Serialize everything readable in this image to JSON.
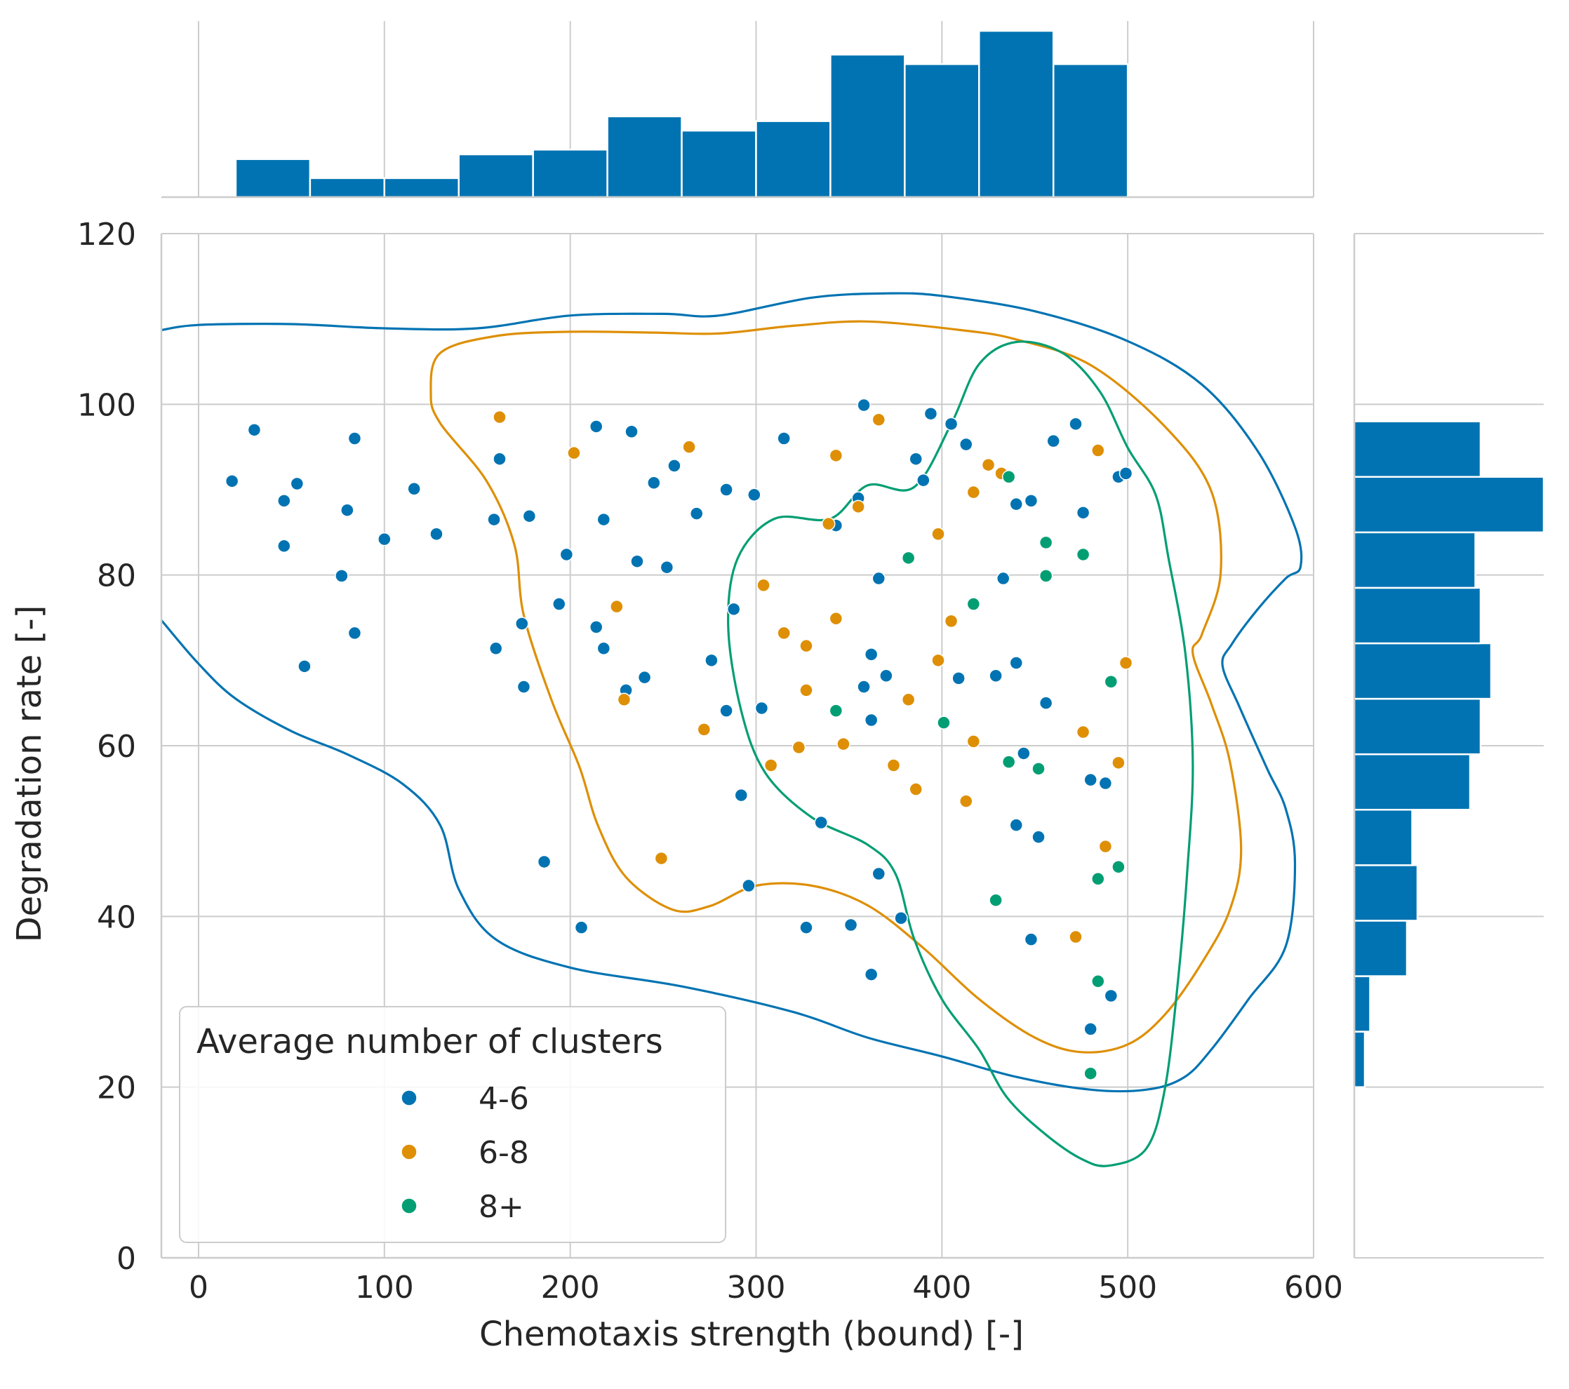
{
  "chart_data": {
    "type": "scatter",
    "title": "",
    "xlabel": "Chemotaxis strength (bound) [-]",
    "ylabel": "Degradation rate [-]",
    "xlim": [
      -20,
      600
    ],
    "ylim": [
      0,
      120
    ],
    "xticks": [
      0,
      100,
      200,
      300,
      400,
      500,
      600
    ],
    "yticks": [
      0,
      20,
      40,
      60,
      80,
      100,
      120
    ],
    "grid": true,
    "legend": {
      "title": "Average number of clusters",
      "placement": "lower-left"
    },
    "series": [
      {
        "name": "4-6",
        "color": "#0173b2",
        "points": [
          [
            18,
            91
          ],
          [
            30,
            97
          ],
          [
            46,
            88.7
          ],
          [
            46,
            83.4
          ],
          [
            53,
            90.7
          ],
          [
            57,
            69.3
          ],
          [
            77,
            79.9
          ],
          [
            80,
            87.6
          ],
          [
            84,
            96
          ],
          [
            84,
            73.2
          ],
          [
            100,
            84.2
          ],
          [
            116,
            90.1
          ],
          [
            128,
            84.8
          ],
          [
            159,
            86.5
          ],
          [
            160,
            71.4
          ],
          [
            162,
            93.6
          ],
          [
            174,
            74.3
          ],
          [
            175,
            66.9
          ],
          [
            178,
            86.9
          ],
          [
            186,
            46.4
          ],
          [
            194,
            76.6
          ],
          [
            198,
            82.4
          ],
          [
            206,
            38.7
          ],
          [
            214,
            97.4
          ],
          [
            214,
            73.9
          ],
          [
            218,
            86.5
          ],
          [
            218,
            71.4
          ],
          [
            230,
            66.5
          ],
          [
            233,
            96.8
          ],
          [
            236,
            81.6
          ],
          [
            240,
            68
          ],
          [
            245,
            90.8
          ],
          [
            252,
            80.9
          ],
          [
            256,
            92.8
          ],
          [
            268,
            87.2
          ],
          [
            276,
            70
          ],
          [
            284,
            90
          ],
          [
            284,
            64.1
          ],
          [
            288,
            76
          ],
          [
            292,
            54.2
          ],
          [
            296,
            43.6
          ],
          [
            299,
            89.4
          ],
          [
            303,
            64.4
          ],
          [
            315,
            96
          ],
          [
            327,
            38.7
          ],
          [
            335,
            51
          ],
          [
            343,
            85.8
          ],
          [
            351,
            39
          ],
          [
            355,
            89
          ],
          [
            358,
            99.9
          ],
          [
            358,
            66.9
          ],
          [
            362,
            70.7
          ],
          [
            362,
            63
          ],
          [
            362,
            33.2
          ],
          [
            366,
            79.6
          ],
          [
            366,
            45
          ],
          [
            370,
            68.2
          ],
          [
            378,
            39.8
          ],
          [
            386,
            93.6
          ],
          [
            390,
            91.1
          ],
          [
            394,
            98.9
          ],
          [
            405,
            97.7
          ],
          [
            409,
            67.9
          ],
          [
            413,
            95.3
          ],
          [
            429,
            68.2
          ],
          [
            433,
            79.6
          ],
          [
            440,
            88.3
          ],
          [
            440,
            50.7
          ],
          [
            440,
            69.7
          ],
          [
            444,
            59.1
          ],
          [
            448,
            88.7
          ],
          [
            448,
            37.3
          ],
          [
            452,
            49.3
          ],
          [
            456,
            65
          ],
          [
            460,
            95.7
          ],
          [
            472,
            97.7
          ],
          [
            476,
            87.3
          ],
          [
            480,
            56
          ],
          [
            480,
            26.8
          ],
          [
            488,
            55.6
          ],
          [
            491,
            30.7
          ],
          [
            495,
            91.5
          ],
          [
            499,
            91.9
          ]
        ]
      },
      {
        "name": "6-8",
        "color": "#de8f05",
        "points": [
          [
            162,
            98.5
          ],
          [
            202,
            94.3
          ],
          [
            225,
            76.3
          ],
          [
            229,
            65.4
          ],
          [
            249,
            46.8
          ],
          [
            264,
            95
          ],
          [
            272,
            61.9
          ],
          [
            304,
            78.8
          ],
          [
            308,
            57.7
          ],
          [
            315,
            73.2
          ],
          [
            323,
            59.8
          ],
          [
            327,
            71.7
          ],
          [
            327,
            66.5
          ],
          [
            339,
            86
          ],
          [
            343,
            94
          ],
          [
            343,
            74.9
          ],
          [
            347,
            60.2
          ],
          [
            355,
            88
          ],
          [
            366,
            98.2
          ],
          [
            374,
            57.7
          ],
          [
            382,
            65.4
          ],
          [
            386,
            54.9
          ],
          [
            398,
            84.8
          ],
          [
            398,
            70
          ],
          [
            405,
            74.6
          ],
          [
            413,
            53.5
          ],
          [
            417,
            89.7
          ],
          [
            417,
            60.5
          ],
          [
            425,
            92.9
          ],
          [
            432,
            91.9
          ],
          [
            472,
            37.6
          ],
          [
            476,
            61.6
          ],
          [
            484,
            94.6
          ],
          [
            488,
            48.2
          ],
          [
            495,
            58
          ],
          [
            499,
            69.7
          ]
        ]
      },
      {
        "name": "8+",
        "color": "#029e73",
        "points": [
          [
            343,
            64.1
          ],
          [
            382,
            82
          ],
          [
            401,
            62.7
          ],
          [
            417,
            76.6
          ],
          [
            429,
            41.9
          ],
          [
            436,
            91.5
          ],
          [
            436,
            58.1
          ],
          [
            452,
            57.3
          ],
          [
            456,
            83.8
          ],
          [
            456,
            79.9
          ],
          [
            476,
            82.4
          ],
          [
            480,
            21.6
          ],
          [
            484,
            44.4
          ],
          [
            484,
            32.4
          ],
          [
            491,
            67.5
          ],
          [
            495,
            45.8
          ]
        ]
      }
    ],
    "top_histogram": {
      "bin_edges": [
        20,
        60,
        100,
        140,
        180,
        220,
        260,
        300,
        340,
        380,
        420,
        460,
        500
      ],
      "counts": [
        8,
        4,
        4,
        9,
        10,
        17,
        14,
        16,
        30,
        28,
        35,
        28
      ]
    },
    "right_histogram": {
      "bin_edges": [
        20,
        26.5,
        33,
        39.5,
        46,
        52.5,
        59,
        65.5,
        72,
        78.5,
        85,
        91.5,
        98
      ],
      "counts": [
        2,
        3,
        10,
        12,
        11,
        22,
        24,
        26,
        24,
        23,
        36,
        24
      ]
    },
    "contours": [
      {
        "series": "4-6",
        "closed": false,
        "points": [
          [
            -20,
            108.7
          ],
          [
            0,
            109.3
          ],
          [
            50,
            109.4
          ],
          [
            100,
            108.9
          ],
          [
            150,
            108.9
          ],
          [
            200,
            110.4
          ],
          [
            250,
            110.6
          ],
          [
            280,
            110.4
          ],
          [
            330,
            112.5
          ],
          [
            370,
            113
          ],
          [
            400,
            112.7
          ],
          [
            450,
            110.9
          ],
          [
            500,
            107.4
          ],
          [
            540,
            102.3
          ],
          [
            570,
            94.5
          ],
          [
            590,
            85.6
          ],
          [
            593,
            81
          ],
          [
            585,
            79.6
          ],
          [
            570,
            76
          ],
          [
            556,
            71.9
          ],
          [
            551,
            69.4
          ],
          [
            560,
            64.6
          ],
          [
            575,
            57.3
          ],
          [
            585,
            52.6
          ],
          [
            590,
            46.2
          ],
          [
            585,
            36.5
          ],
          [
            565,
            30.3
          ],
          [
            545,
            24.4
          ],
          [
            530,
            21.1
          ],
          [
            510,
            19.7
          ],
          [
            480,
            19.7
          ],
          [
            440,
            21.2
          ],
          [
            400,
            23.6
          ],
          [
            360,
            25.8
          ],
          [
            320,
            28.8
          ],
          [
            260,
            31.8
          ],
          [
            200,
            34
          ],
          [
            160,
            37.3
          ],
          [
            140,
            43.2
          ],
          [
            130,
            50.7
          ],
          [
            110,
            55.5
          ],
          [
            80,
            59
          ],
          [
            50,
            61.7
          ],
          [
            20,
            65.5
          ],
          [
            0,
            69.6
          ],
          [
            -20,
            74.7
          ]
        ]
      },
      {
        "series": "6-8",
        "closed": true,
        "points": [
          [
            125,
            101.3
          ],
          [
            130,
            106
          ],
          [
            160,
            108
          ],
          [
            200,
            108.5
          ],
          [
            245,
            108.4
          ],
          [
            280,
            108.3
          ],
          [
            320,
            109.2
          ],
          [
            360,
            109.7
          ],
          [
            410,
            108.7
          ],
          [
            440,
            107.6
          ],
          [
            480,
            104.6
          ],
          [
            520,
            97.4
          ],
          [
            545,
            89.8
          ],
          [
            550,
            80.2
          ],
          [
            540,
            73.1
          ],
          [
            535,
            70.8
          ],
          [
            545,
            64.9
          ],
          [
            555,
            58.1
          ],
          [
            561,
            47.8
          ],
          [
            555,
            40.8
          ],
          [
            540,
            34.6
          ],
          [
            520,
            28.5
          ],
          [
            500,
            25
          ],
          [
            475,
            24.1
          ],
          [
            450,
            25.8
          ],
          [
            420,
            30.3
          ],
          [
            390,
            36.3
          ],
          [
            360,
            41.3
          ],
          [
            330,
            43.6
          ],
          [
            300,
            43.6
          ],
          [
            275,
            41.2
          ],
          [
            255,
            40.8
          ],
          [
            230,
            44.6
          ],
          [
            215,
            50.6
          ],
          [
            205,
            57.5
          ],
          [
            190,
            65.3
          ],
          [
            175,
            75.3
          ],
          [
            170,
            83.5
          ],
          [
            155,
            91
          ],
          [
            130,
            97.8
          ]
        ]
      },
      {
        "series": "8+",
        "closed": true,
        "points": [
          [
            490,
            10.8
          ],
          [
            510,
            12.8
          ],
          [
            520,
            19.8
          ],
          [
            527,
            32.4
          ],
          [
            532,
            45.2
          ],
          [
            535,
            57.9
          ],
          [
            531,
            70.8
          ],
          [
            522,
            81.9
          ],
          [
            515,
            89.4
          ],
          [
            500,
            94.9
          ],
          [
            485,
            101.5
          ],
          [
            465,
            106
          ],
          [
            440,
            107.3
          ],
          [
            420,
            104.7
          ],
          [
            405,
            97.7
          ],
          [
            385,
            90.3
          ],
          [
            360,
            90.5
          ],
          [
            340,
            86.6
          ],
          [
            310,
            86.6
          ],
          [
            290,
            81.9
          ],
          [
            285,
            74
          ],
          [
            292,
            64.1
          ],
          [
            305,
            56.8
          ],
          [
            330,
            51.6
          ],
          [
            360,
            48.4
          ],
          [
            375,
            45
          ],
          [
            385,
            37.4
          ],
          [
            400,
            30.3
          ],
          [
            420,
            24.4
          ],
          [
            435,
            18.8
          ],
          [
            455,
            14.6
          ],
          [
            475,
            11.6
          ]
        ]
      }
    ]
  }
}
